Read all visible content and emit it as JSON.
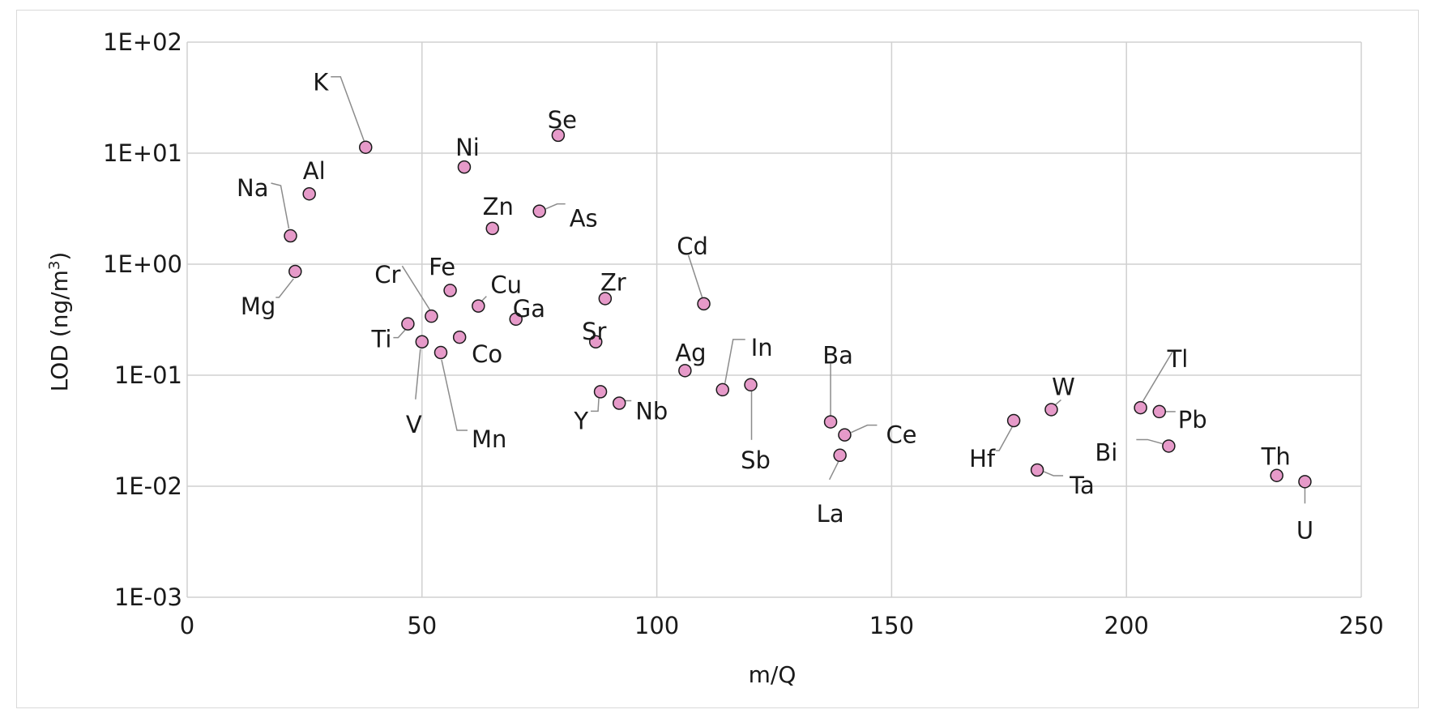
{
  "chart_data": {
    "type": "scatter",
    "title": "",
    "xlabel": "m/Q",
    "ylabel": "LOD (ng/m",
    "ylabel_superscript": "3",
    "ylabel_suffix": ")",
    "xlim": [
      0,
      250
    ],
    "ylim": [
      0.001,
      100
    ],
    "y_scale": "log",
    "x_ticks": [
      0,
      50,
      100,
      150,
      200,
      250
    ],
    "x_tick_labels": [
      "0",
      "50",
      "100",
      "150",
      "200",
      "250"
    ],
    "y_ticks": [
      0.001,
      0.01,
      0.1,
      1,
      10,
      100
    ],
    "y_tick_labels": [
      "1E-03",
      "1E-02",
      "1E-01",
      "1E+00",
      "1E+01",
      "1E+02"
    ],
    "grid": true,
    "marker_color": "#e69ac9",
    "marker_edge_color": "#1a1a1a",
    "points": [
      {
        "label": "Na",
        "x": 22,
        "y": 1.8
      },
      {
        "label": "Mg",
        "x": 23,
        "y": 0.86
      },
      {
        "label": "Al",
        "x": 26,
        "y": 4.3
      },
      {
        "label": "K",
        "x": 38,
        "y": 11.3
      },
      {
        "label": "Ti",
        "x": 47,
        "y": 0.29
      },
      {
        "label": "V",
        "x": 50,
        "y": 0.2
      },
      {
        "label": "Cr",
        "x": 52,
        "y": 0.34
      },
      {
        "label": "Mn",
        "x": 54,
        "y": 0.16
      },
      {
        "label": "Fe",
        "x": 56,
        "y": 0.58
      },
      {
        "label": "Co",
        "x": 58,
        "y": 0.22
      },
      {
        "label": "Ni",
        "x": 59,
        "y": 7.5
      },
      {
        "label": "Cu",
        "x": 62,
        "y": 0.42
      },
      {
        "label": "Zn",
        "x": 65,
        "y": 2.1
      },
      {
        "label": "Ga",
        "x": 70,
        "y": 0.32
      },
      {
        "label": "As",
        "x": 75,
        "y": 3.0
      },
      {
        "label": "Se",
        "x": 79,
        "y": 14.5
      },
      {
        "label": "Sr",
        "x": 87,
        "y": 0.2
      },
      {
        "label": "Y",
        "x": 88,
        "y": 0.071
      },
      {
        "label": "Zr",
        "x": 89,
        "y": 0.49
      },
      {
        "label": "Nb",
        "x": 92,
        "y": 0.056
      },
      {
        "label": "Ag",
        "x": 106,
        "y": 0.11
      },
      {
        "label": "Cd",
        "x": 110,
        "y": 0.44
      },
      {
        "label": "In",
        "x": 114,
        "y": 0.074
      },
      {
        "label": "Sb",
        "x": 120,
        "y": 0.082
      },
      {
        "label": "Ba",
        "x": 137,
        "y": 0.038
      },
      {
        "label": "La",
        "x": 139,
        "y": 0.019
      },
      {
        "label": "Ce",
        "x": 140,
        "y": 0.029
      },
      {
        "label": "Hf",
        "x": 176,
        "y": 0.039
      },
      {
        "label": "Ta",
        "x": 181,
        "y": 0.014
      },
      {
        "label": "W",
        "x": 184,
        "y": 0.049
      },
      {
        "label": "Tl",
        "x": 203,
        "y": 0.051
      },
      {
        "label": "Pb",
        "x": 207,
        "y": 0.047
      },
      {
        "label": "Bi",
        "x": 209,
        "y": 0.023
      },
      {
        "label": "Th",
        "x": 232,
        "y": 0.0125
      },
      {
        "label": "U",
        "x": 238,
        "y": 0.011
      }
    ]
  }
}
